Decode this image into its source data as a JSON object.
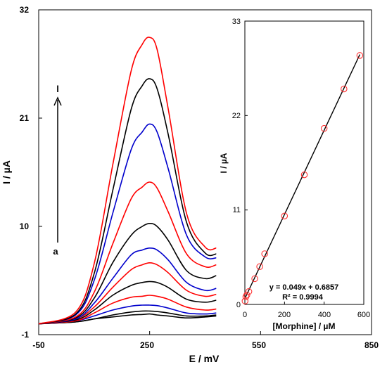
{
  "chart_data": [
    {
      "type": "line",
      "xlabel": "E / mV",
      "ylabel": "I / µA",
      "x_ticks": [
        "-50",
        "250",
        "550",
        "850"
      ],
      "y_ticks": [
        "-1",
        "10",
        "21",
        "32"
      ],
      "xlim": [
        -50,
        850
      ],
      "ylim": [
        -1,
        32
      ],
      "arrow_label_top": "l",
      "arrow_label_bottom": "a",
      "curve_colors": [
        "#000000",
        "#000000",
        "#0000cc",
        "#ff0000",
        "#000000",
        "#ff0000",
        "#0000cc",
        "#000000",
        "#ff0000",
        "#0000cc",
        "#000000",
        "#ff0000"
      ],
      "x": [
        -50,
        50,
        100,
        150,
        200,
        230,
        250,
        270,
        300,
        350,
        400,
        430
      ],
      "series": [
        {
          "values": [
            0.1,
            0.3,
            0.6,
            0.8,
            1.0,
            1.05,
            1.1,
            1.0,
            0.9,
            0.7,
            0.8,
            0.9
          ]
        },
        {
          "values": [
            0.1,
            0.3,
            0.6,
            1.0,
            1.3,
            1.4,
            1.4,
            1.35,
            1.2,
            0.9,
            0.9,
            1.0
          ]
        },
        {
          "values": [
            0.1,
            0.4,
            0.9,
            1.5,
            1.9,
            2.0,
            2.0,
            1.95,
            1.7,
            1.2,
            1.1,
            1.2
          ]
        },
        {
          "values": [
            0.1,
            0.4,
            1.2,
            2.2,
            2.8,
            2.9,
            3.0,
            2.9,
            2.6,
            1.8,
            1.5,
            1.6
          ]
        },
        {
          "values": [
            0.1,
            0.5,
            1.5,
            3.0,
            4.0,
            4.3,
            4.4,
            4.3,
            3.8,
            2.6,
            2.3,
            2.5
          ]
        },
        {
          "values": [
            0.1,
            0.6,
            1.8,
            3.8,
            5.6,
            6.1,
            6.3,
            6.1,
            5.3,
            3.5,
            2.9,
            3.1
          ]
        },
        {
          "values": [
            0.1,
            0.6,
            2.2,
            4.7,
            7.1,
            7.6,
            7.8,
            7.6,
            6.6,
            4.3,
            3.5,
            3.7
          ]
        },
        {
          "values": [
            0.1,
            0.7,
            2.7,
            6.3,
            9.1,
            10.0,
            10.3,
            10.0,
            8.6,
            5.5,
            4.7,
            5.0
          ]
        },
        {
          "values": [
            0.1,
            0.8,
            3.3,
            8.2,
            12.8,
            14.0,
            14.5,
            13.9,
            11.5,
            7.2,
            5.9,
            6.1
          ]
        },
        {
          "values": [
            0.1,
            1.0,
            4.5,
            11.3,
            17.8,
            19.6,
            20.4,
            19.6,
            15.9,
            9.1,
            6.9,
            6.8
          ]
        },
        {
          "values": [
            0.1,
            1.1,
            5.2,
            13.6,
            21.9,
            24.3,
            25.0,
            24.0,
            19.4,
            10.4,
            7.3,
            7.2
          ]
        },
        {
          "values": [
            0.1,
            1.3,
            6.2,
            16.2,
            25.8,
            28.5,
            29.2,
            28.0,
            22.0,
            11.3,
            7.9,
            7.8
          ]
        }
      ]
    },
    {
      "type": "scatter",
      "xlabel": "[Morphine] / µM",
      "ylabel": "I / µA",
      "x_ticks": [
        "0",
        "200",
        "400",
        "600"
      ],
      "y_ticks": [
        "0",
        "11",
        "22",
        "33"
      ],
      "xlim": [
        0,
        600
      ],
      "ylim": [
        0,
        33
      ],
      "x": [
        1,
        5,
        10,
        20,
        50,
        75,
        100,
        200,
        300,
        400,
        500,
        580
      ],
      "y": [
        0.4,
        0.9,
        1.1,
        1.5,
        3.0,
        4.4,
        5.9,
        10.3,
        15.1,
        20.5,
        25.1,
        29.0
      ],
      "fit": {
        "slope": 0.049,
        "intercept": 0.6857,
        "x_range": [
          0,
          580
        ]
      },
      "equation": "y = 0.049x + 0.6857",
      "r_squared": "R² = 0.9994",
      "marker_color": "#ff3333"
    }
  ]
}
